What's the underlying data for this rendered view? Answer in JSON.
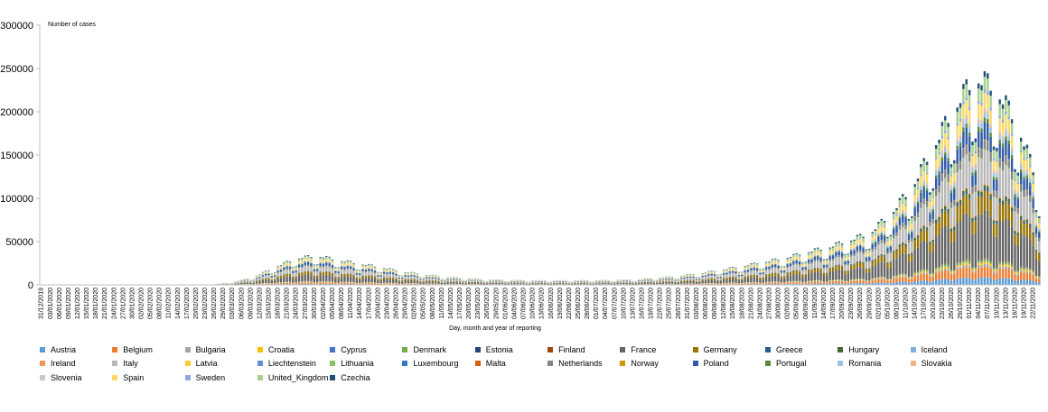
{
  "chart_data": {
    "type": "bar",
    "stacked": true,
    "title": "",
    "unit_label": "Number of cases",
    "xlabel": "Day, month and year of reporting",
    "ylabel": "",
    "ylim": [
      0,
      300000
    ],
    "yticks": [
      "0",
      "50000",
      "100000",
      "150000",
      "200000",
      "250000",
      "300000"
    ],
    "start_date": "2019-12-31",
    "end_date": "2020-11-24",
    "tick_every_days": 3,
    "legend_position": "bottom",
    "totals_weekly_avg": [
      {
        "week_start": "2019-12-31",
        "value": 0
      },
      {
        "week_start": "2020-01-28",
        "value": 30
      },
      {
        "week_start": "2020-02-18",
        "value": 100
      },
      {
        "week_start": "2020-02-25",
        "value": 600
      },
      {
        "week_start": "2020-03-03",
        "value": 3000
      },
      {
        "week_start": "2020-03-10",
        "value": 9000
      },
      {
        "week_start": "2020-03-17",
        "value": 20000
      },
      {
        "week_start": "2020-03-24",
        "value": 30000
      },
      {
        "week_start": "2020-03-31",
        "value": 33000
      },
      {
        "week_start": "2020-04-07",
        "value": 28000
      },
      {
        "week_start": "2020-04-14",
        "value": 24000
      },
      {
        "week_start": "2020-04-21",
        "value": 20000
      },
      {
        "week_start": "2020-04-28",
        "value": 15000
      },
      {
        "week_start": "2020-05-05",
        "value": 12000
      },
      {
        "week_start": "2020-05-12",
        "value": 9000
      },
      {
        "week_start": "2020-05-19",
        "value": 7500
      },
      {
        "week_start": "2020-05-26",
        "value": 6000
      },
      {
        "week_start": "2020-06-02",
        "value": 5500
      },
      {
        "week_start": "2020-06-09",
        "value": 5000
      },
      {
        "week_start": "2020-06-16",
        "value": 5000
      },
      {
        "week_start": "2020-06-23",
        "value": 5000
      },
      {
        "week_start": "2020-06-30",
        "value": 5000
      },
      {
        "week_start": "2020-07-07",
        "value": 5500
      },
      {
        "week_start": "2020-07-14",
        "value": 6000
      },
      {
        "week_start": "2020-07-21",
        "value": 8000
      },
      {
        "week_start": "2020-07-28",
        "value": 10000
      },
      {
        "week_start": "2020-08-04",
        "value": 13000
      },
      {
        "week_start": "2020-08-11",
        "value": 17000
      },
      {
        "week_start": "2020-08-18",
        "value": 21000
      },
      {
        "week_start": "2020-08-25",
        "value": 26000
      },
      {
        "week_start": "2020-09-01",
        "value": 30000
      },
      {
        "week_start": "2020-09-08",
        "value": 37000
      },
      {
        "week_start": "2020-09-15",
        "value": 42000
      },
      {
        "week_start": "2020-09-22",
        "value": 50000
      },
      {
        "week_start": "2020-09-29",
        "value": 58000
      },
      {
        "week_start": "2020-10-06",
        "value": 80000
      },
      {
        "week_start": "2020-10-13",
        "value": 110000
      },
      {
        "week_start": "2020-10-20",
        "value": 155000
      },
      {
        "week_start": "2020-10-27",
        "value": 200000
      },
      {
        "week_start": "2020-11-03",
        "value": 235000
      },
      {
        "week_start": "2020-11-10",
        "value": 220000
      },
      {
        "week_start": "2020-11-17",
        "value": 180000
      },
      {
        "week_start": "2020-11-24",
        "value": 110000
      }
    ],
    "series": [
      {
        "name": "Austria",
        "color": "#5b9bd5",
        "share": 0.035
      },
      {
        "name": "Belgium",
        "color": "#ed7d31",
        "share": 0.05
      },
      {
        "name": "Bulgaria",
        "color": "#a5a5a5",
        "share": 0.012
      },
      {
        "name": "Croatia",
        "color": "#ffc000",
        "share": 0.01
      },
      {
        "name": "Cyprus",
        "color": "#4472c4",
        "share": 0.002
      },
      {
        "name": "Denmark",
        "color": "#70ad47",
        "share": 0.01
      },
      {
        "name": "Estonia",
        "color": "#264478",
        "share": 0.002
      },
      {
        "name": "Finland",
        "color": "#9e480e",
        "share": 0.003
      },
      {
        "name": "France",
        "color": "#636363",
        "share": 0.22
      },
      {
        "name": "Germany",
        "color": "#997300",
        "share": 0.09
      },
      {
        "name": "Greece",
        "color": "#255e91",
        "share": 0.01
      },
      {
        "name": "Hungary",
        "color": "#43682b",
        "share": 0.015
      },
      {
        "name": "Iceland",
        "color": "#7cafdd",
        "share": 0.001
      },
      {
        "name": "Ireland",
        "color": "#f1975a",
        "share": 0.006
      },
      {
        "name": "Italy",
        "color": "#b7b7b7",
        "share": 0.15
      },
      {
        "name": "Latvia",
        "color": "#ffcd33",
        "share": 0.002
      },
      {
        "name": "Liechtenstein",
        "color": "#698ed0",
        "share": 0.001
      },
      {
        "name": "Lithuania",
        "color": "#8cc168",
        "share": 0.005
      },
      {
        "name": "Luxembourg",
        "color": "#327dc2",
        "share": 0.002
      },
      {
        "name": "Malta",
        "color": "#d26012",
        "share": 0.001
      },
      {
        "name": "Netherlands",
        "color": "#848484",
        "share": 0.04
      },
      {
        "name": "Norway",
        "color": "#cc9a00",
        "share": 0.003
      },
      {
        "name": "Poland",
        "color": "#2e5aa8",
        "share": 0.08
      },
      {
        "name": "Portugal",
        "color": "#5a8a39",
        "share": 0.02
      },
      {
        "name": "Romania",
        "color": "#9dc3e6",
        "share": 0.025
      },
      {
        "name": "Slovakia",
        "color": "#f4b183",
        "share": 0.01
      },
      {
        "name": "Slovenia",
        "color": "#c9c9c9",
        "share": 0.008
      },
      {
        "name": "Spain",
        "color": "#ffd966",
        "share": 0.07
      },
      {
        "name": "Sweden",
        "color": "#8faadc",
        "share": 0.015
      },
      {
        "name": "United_Kingdom",
        "color": "#a9d18e",
        "share": 0.06
      },
      {
        "name": "Czechia",
        "color": "#1f4e79",
        "share": 0.025
      }
    ]
  }
}
